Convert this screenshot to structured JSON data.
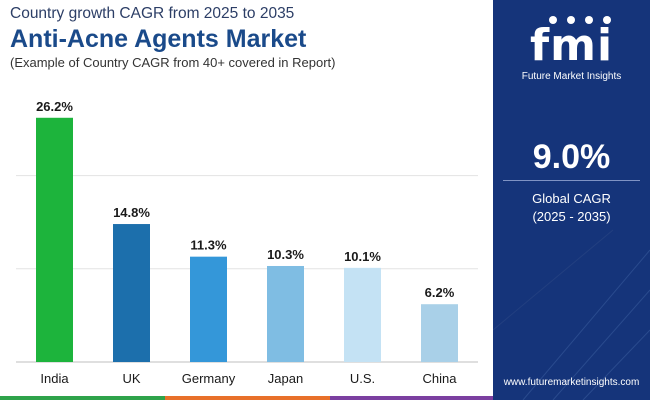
{
  "header": {
    "subtitle_top": "Country growth CAGR from 2025 to 2035",
    "title": "Anti-Acne Agents Market",
    "subtitle_note": "(Example of Country CAGR from 40+ covered in Report)"
  },
  "chart_data": {
    "type": "bar",
    "categories": [
      "India",
      "UK",
      "Germany",
      "Japan",
      "U.S.",
      "China"
    ],
    "values": [
      26.2,
      14.8,
      11.3,
      10.3,
      10.1,
      6.2
    ],
    "value_labels": [
      "26.2%",
      "14.8%",
      "11.3%",
      "10.3%",
      "10.1%",
      "6.2%"
    ],
    "bar_colors": [
      "#1db43c",
      "#1c6fac",
      "#3497d9",
      "#7fbde3",
      "#c4e2f4",
      "#a9d0e8"
    ],
    "ylim": [
      0,
      28
    ],
    "gridlines": [
      10,
      20
    ],
    "grid": true,
    "legend": "none"
  },
  "sidebar": {
    "logo_mark": "fmi",
    "logo_text": "Future Market Insights",
    "global_value": "9.0%",
    "global_label": "Global CAGR",
    "global_period": "(2025 - 2035)",
    "url": "www.futuremarketinsights.com",
    "background": "#15347a"
  },
  "footer_colors": [
    "#2ea34a",
    "#e8702a",
    "#7b3fa0"
  ]
}
